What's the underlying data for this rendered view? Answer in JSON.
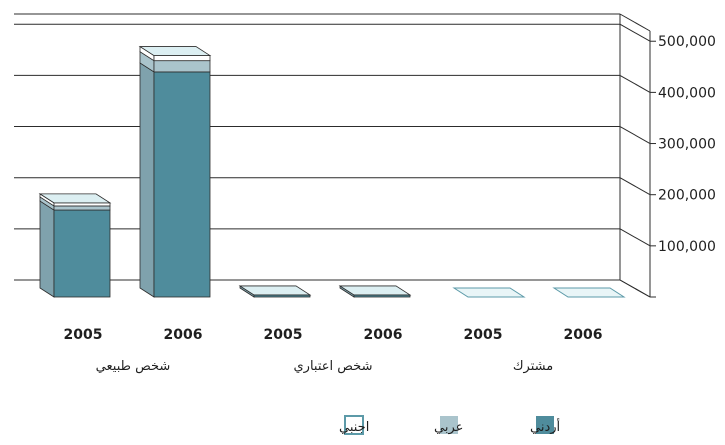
{
  "chart_data": {
    "type": "bar",
    "stacked": true,
    "three_d": true,
    "y_axis_side": "right",
    "ylim": [
      0,
      520000
    ],
    "yticks": [
      100000,
      200000,
      300000,
      400000,
      500000
    ],
    "ytick_labels": [
      "100,000",
      "200,000",
      "300,000",
      "400,000",
      "500,000"
    ],
    "grid": true,
    "legend_position": "bottom",
    "groups": [
      {
        "label": "شخص طبيعي",
        "years": [
          "2005",
          "2006"
        ]
      },
      {
        "label": "شخص اعتباري",
        "years": [
          "2005",
          "2006"
        ]
      },
      {
        "label": "مشترك",
        "years": [
          "2005",
          "2006"
        ]
      }
    ],
    "categories": [
      "2005",
      "2006",
      "2005",
      "2006",
      "2005",
      "2006"
    ],
    "series": [
      {
        "name": "أردني",
        "color": "#4f8c9c",
        "values": [
          170000,
          440000,
          4000,
          4000,
          0,
          0
        ]
      },
      {
        "name": "عربي",
        "color": "#aac4cc",
        "values": [
          8000,
          22000,
          0,
          0,
          0,
          0
        ]
      },
      {
        "name": "اجنبي",
        "color": "#ffffff",
        "values": [
          6000,
          10000,
          0,
          0,
          0,
          0
        ]
      }
    ],
    "colors": {
      "wall_line": "#2c2c2c",
      "front_outline": "#2c2c2c",
      "side_shade": "#7fa2ad",
      "top_tint": "#dceff2",
      "empty_top": "#e9f5f7",
      "empty_outline": "#5c9aa8"
    }
  }
}
